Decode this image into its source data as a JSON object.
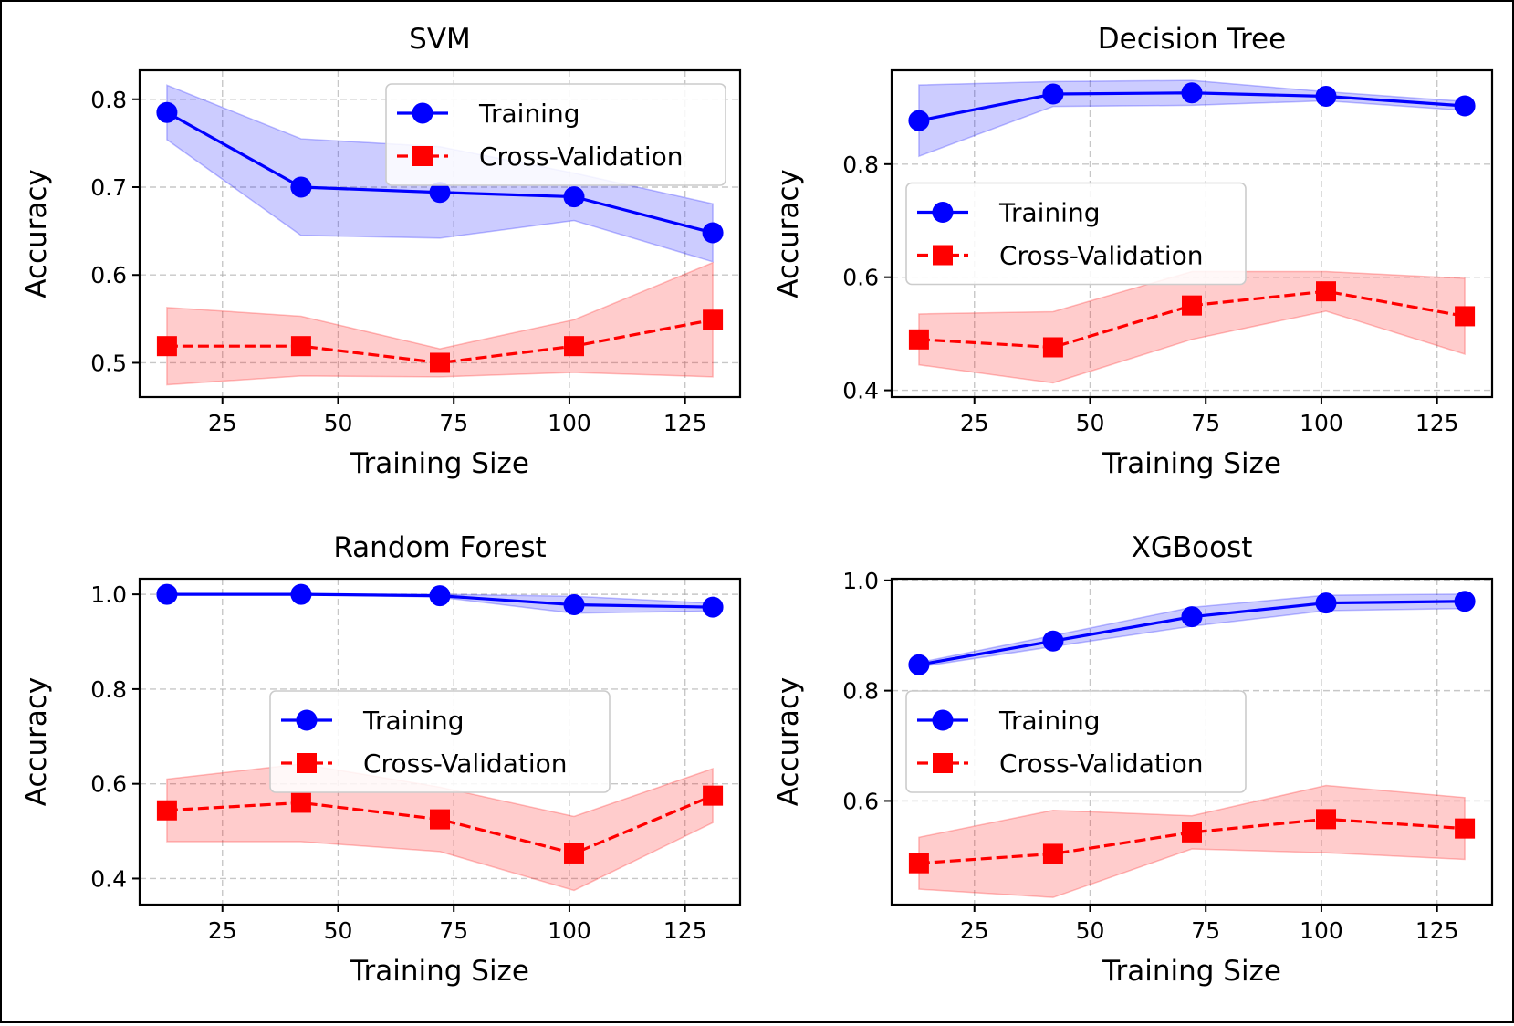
{
  "colors": {
    "training": "#0000ff",
    "cv": "#ff0000",
    "training_band": "#0000ff",
    "cv_band": "#ff0000",
    "grid": "#b0b0b0"
  },
  "chart_data": [
    {
      "type": "line",
      "title": "SVM",
      "xlabel": "Training Size",
      "ylabel": "Accuracy",
      "xlim": [
        7.1,
        136.9
      ],
      "ylim": [
        0.461,
        0.833
      ],
      "xticks": [
        25,
        50,
        75,
        100,
        125
      ],
      "xtick_labels": [
        "25",
        "50",
        "75",
        "100",
        "125"
      ],
      "yticks": [
        0.5,
        0.6,
        0.7,
        0.8
      ],
      "ytick_labels": [
        "0.5",
        "0.6",
        "0.7",
        "0.8"
      ],
      "legend_position": "upper right",
      "x": [
        13,
        42,
        72,
        101,
        131
      ],
      "series": [
        {
          "name": "Training",
          "key": "training",
          "marker": "circle",
          "dash": "solid",
          "values": [
            0.785,
            0.7,
            0.694,
            0.689,
            0.648
          ],
          "lower": [
            0.754,
            0.645,
            0.642,
            0.662,
            0.615
          ],
          "upper": [
            0.816,
            0.755,
            0.746,
            0.716,
            0.681
          ]
        },
        {
          "name": "Cross-Validation",
          "key": "cv",
          "marker": "square",
          "dash": "dashed",
          "values": [
            0.519,
            0.519,
            0.5,
            0.519,
            0.549
          ],
          "lower": [
            0.475,
            0.485,
            0.484,
            0.489,
            0.484
          ],
          "upper": [
            0.563,
            0.553,
            0.516,
            0.549,
            0.614
          ]
        }
      ]
    },
    {
      "type": "line",
      "title": "Decision Tree",
      "xlabel": "Training Size",
      "ylabel": "Accuracy",
      "xlim": [
        7.1,
        136.9
      ],
      "ylim": [
        0.388,
        0.966
      ],
      "xticks": [
        25,
        50,
        75,
        100,
        125
      ],
      "xtick_labels": [
        "25",
        "50",
        "75",
        "100",
        "125"
      ],
      "yticks": [
        0.4,
        0.6,
        0.8
      ],
      "ytick_labels": [
        "0.4",
        "0.6",
        "0.8"
      ],
      "legend_position": "center left",
      "x": [
        13,
        42,
        72,
        101,
        131
      ],
      "series": [
        {
          "name": "Training",
          "key": "training",
          "marker": "circle",
          "dash": "solid",
          "values": [
            0.877,
            0.924,
            0.926,
            0.92,
            0.903
          ],
          "lower": [
            0.814,
            0.902,
            0.904,
            0.912,
            0.895
          ],
          "upper": [
            0.94,
            0.946,
            0.948,
            0.928,
            0.911
          ]
        },
        {
          "name": "Cross-Validation",
          "key": "cv",
          "marker": "square",
          "dash": "dashed",
          "values": [
            0.49,
            0.476,
            0.55,
            0.575,
            0.531
          ],
          "lower": [
            0.445,
            0.413,
            0.49,
            0.54,
            0.464
          ],
          "upper": [
            0.535,
            0.539,
            0.61,
            0.61,
            0.598
          ]
        }
      ]
    },
    {
      "type": "line",
      "title": "Random Forest",
      "xlabel": "Training Size",
      "ylabel": "Accuracy",
      "xlim": [
        7.1,
        136.9
      ],
      "ylim": [
        0.345,
        1.033
      ],
      "xticks": [
        25,
        50,
        75,
        100,
        125
      ],
      "xtick_labels": [
        "25",
        "50",
        "75",
        "100",
        "125"
      ],
      "yticks": [
        0.4,
        0.6,
        0.8,
        1.0
      ],
      "ytick_labels": [
        "0.4",
        "0.6",
        "0.8",
        "1.0"
      ],
      "legend_position": "center",
      "x": [
        13,
        42,
        72,
        101,
        131
      ],
      "series": [
        {
          "name": "Training",
          "key": "training",
          "marker": "circle",
          "dash": "solid",
          "values": [
            1.0,
            1.0,
            0.997,
            0.978,
            0.973
          ],
          "lower": [
            1.0,
            1.0,
            0.994,
            0.96,
            0.965
          ],
          "upper": [
            1.0,
            1.0,
            1.0,
            0.996,
            0.981
          ]
        },
        {
          "name": "Cross-Validation",
          "key": "cv",
          "marker": "square",
          "dash": "dashed",
          "values": [
            0.544,
            0.56,
            0.525,
            0.453,
            0.575
          ],
          "lower": [
            0.478,
            0.478,
            0.457,
            0.375,
            0.518
          ],
          "upper": [
            0.61,
            0.642,
            0.593,
            0.531,
            0.632
          ]
        }
      ]
    },
    {
      "type": "line",
      "title": "XGBoost",
      "xlabel": "Training Size",
      "ylabel": "Accuracy",
      "xlim": [
        7.1,
        136.9
      ],
      "ylim": [
        0.412,
        1.003
      ],
      "xticks": [
        25,
        50,
        75,
        100,
        125
      ],
      "xtick_labels": [
        "25",
        "50",
        "75",
        "100",
        "125"
      ],
      "yticks": [
        0.6,
        0.8,
        1.0
      ],
      "ytick_labels": [
        "0.6",
        "0.8",
        "1.0"
      ],
      "legend_position": "center left",
      "x": [
        13,
        42,
        72,
        101,
        131
      ],
      "series": [
        {
          "name": "Training",
          "key": "training",
          "marker": "circle",
          "dash": "solid",
          "values": [
            0.847,
            0.89,
            0.934,
            0.959,
            0.962
          ],
          "lower": [
            0.843,
            0.88,
            0.917,
            0.945,
            0.949
          ],
          "upper": [
            0.851,
            0.9,
            0.951,
            0.973,
            0.975
          ]
        },
        {
          "name": "Cross-Validation",
          "key": "cv",
          "marker": "square",
          "dash": "dashed",
          "values": [
            0.487,
            0.504,
            0.543,
            0.567,
            0.55
          ],
          "lower": [
            0.44,
            0.425,
            0.513,
            0.506,
            0.494
          ],
          "upper": [
            0.534,
            0.583,
            0.573,
            0.628,
            0.606
          ]
        }
      ]
    }
  ]
}
